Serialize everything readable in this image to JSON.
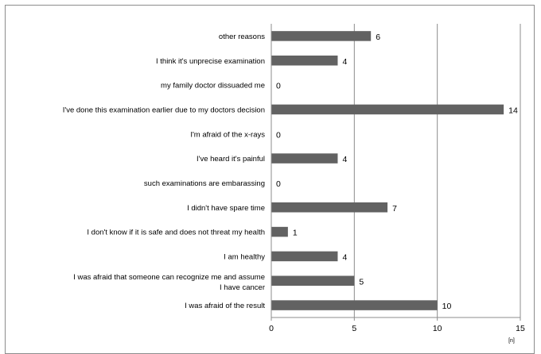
{
  "chart_data": {
    "type": "bar",
    "orientation": "horizontal",
    "categories": [
      "other reasons",
      "I think it's unprecise examination",
      "my family doctor dissuaded me",
      "I've done this examination earlier due to my doctors decision",
      "I'm afraid of the x-rays",
      "I've heard it's painful",
      "such examinations are embarassing",
      "I didn't have spare time",
      "I don't know if it is safe and does not threat my health",
      "I am healthy",
      [
        "I was afraid that someone can recognize me and assume",
        "I have cancer"
      ],
      "I was afraid of the result"
    ],
    "values": [
      6,
      4,
      0,
      14,
      0,
      4,
      0,
      7,
      1,
      4,
      5,
      10
    ],
    "xlim": [
      0,
      15
    ],
    "xticks": [
      0,
      5,
      10,
      15
    ],
    "x_unit": "[n]",
    "grid": "vertical major gridlines",
    "legend": "none",
    "bar_color": "#626262",
    "grid_color": "#8c8c8c"
  }
}
